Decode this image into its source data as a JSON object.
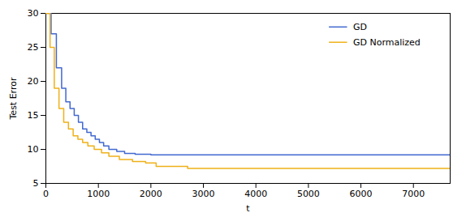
{
  "chart_data": {
    "type": "line",
    "xlabel": "t",
    "ylabel": "Test Error",
    "xlim": [
      0,
      7700
    ],
    "ylim": [
      5,
      30
    ],
    "xticks": [
      0,
      1000,
      2000,
      3000,
      4000,
      5000,
      6000,
      7000
    ],
    "yticks": [
      5,
      10,
      15,
      20,
      25,
      30
    ],
    "grid": false,
    "legend": "upper right",
    "series": [
      {
        "name": "GD",
        "x": [
          0,
          100,
          100,
          200,
          200,
          300,
          300,
          380,
          380,
          460,
          460,
          540,
          540,
          620,
          620,
          700,
          700,
          780,
          780,
          860,
          860,
          940,
          940,
          1020,
          1020,
          1100,
          1100,
          1200,
          1200,
          1350,
          1350,
          1500,
          1500,
          1700,
          1700,
          2000,
          2000,
          7700
        ],
        "values": [
          30,
          30,
          27,
          27,
          22,
          22,
          19,
          19,
          17,
          17,
          16,
          16,
          15,
          15,
          14,
          14,
          13,
          13,
          12.5,
          12.5,
          12,
          12,
          11.5,
          11.5,
          11,
          11,
          10.5,
          10.5,
          10,
          10,
          9.7,
          9.7,
          9.4,
          9.4,
          9.3,
          9.3,
          9.2,
          9.2
        ]
      },
      {
        "name": "GD Normalized",
        "x": [
          0,
          80,
          80,
          160,
          160,
          250,
          250,
          340,
          340,
          430,
          430,
          520,
          520,
          610,
          610,
          700,
          700,
          800,
          800,
          920,
          920,
          1060,
          1060,
          1200,
          1200,
          1400,
          1400,
          1650,
          1650,
          1900,
          1900,
          2100,
          2100,
          2700,
          2700,
          7700
        ],
        "values": [
          30,
          30,
          25,
          25,
          19,
          19,
          16,
          16,
          14,
          14,
          13,
          13,
          12,
          12,
          11.5,
          11.5,
          11,
          11,
          10.5,
          10.5,
          10,
          10,
          9.5,
          9.5,
          9.0,
          9.0,
          8.5,
          8.5,
          8.2,
          8.2,
          8.0,
          8.0,
          7.5,
          7.5,
          7.2,
          7.2
        ]
      }
    ]
  }
}
